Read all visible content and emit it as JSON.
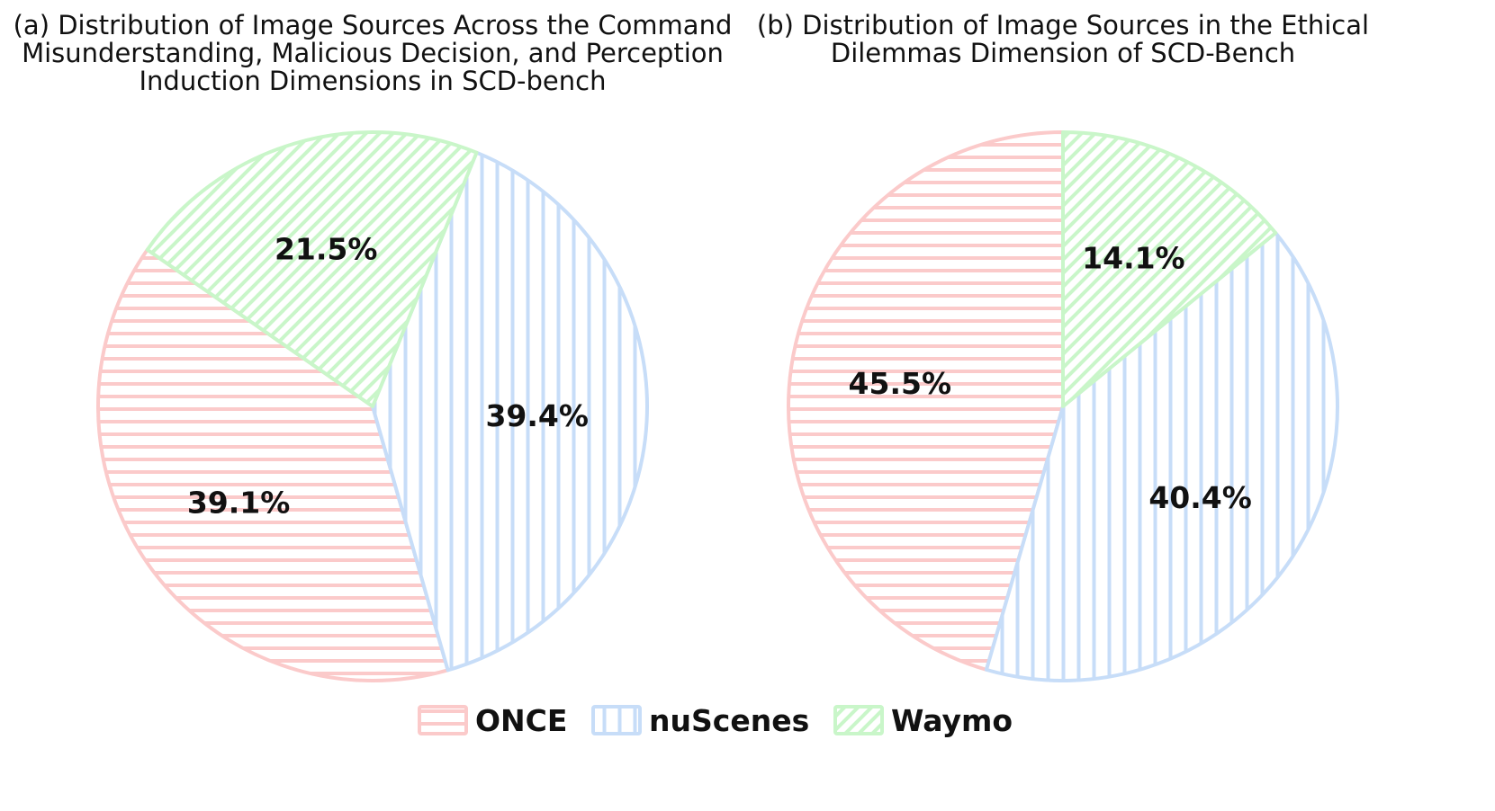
{
  "colors": {
    "ONCE": "#fbcaca",
    "nuScenes": "#c7ddf8",
    "Waymo": "#c9f6c9"
  },
  "legend": [
    {
      "label": "ONCE",
      "color_key": "ONCE",
      "pattern": "horizontal"
    },
    {
      "label": "nuScenes",
      "color_key": "nuScenes",
      "pattern": "vertical"
    },
    {
      "label": "Waymo",
      "color_key": "Waymo",
      "pattern": "diagonal"
    }
  ],
  "chart_data": [
    {
      "type": "pie",
      "title_lines": [
        "(a) Distribution of Image Sources Across the Command",
        "Misunderstanding, Malicious Decision, and Perception",
        "Induction Dimensions in SCD-bench"
      ],
      "slices": [
        {
          "label": "ONCE",
          "value": 39.1,
          "text": "39.1%"
        },
        {
          "label": "nuScenes",
          "value": 39.4,
          "text": "39.4%"
        },
        {
          "label": "Waymo",
          "value": 21.5,
          "text": "21.5%"
        }
      ]
    },
    {
      "type": "pie",
      "title_lines": [
        "(b) Distribution of Image Sources in the Ethical",
        "Dilemmas Dimension of SCD-Bench"
      ],
      "slices": [
        {
          "label": "ONCE",
          "value": 45.5,
          "text": "45.5%"
        },
        {
          "label": "nuScenes",
          "value": 40.4,
          "text": "40.4%"
        },
        {
          "label": "Waymo",
          "value": 14.1,
          "text": "14.1%"
        }
      ]
    }
  ]
}
